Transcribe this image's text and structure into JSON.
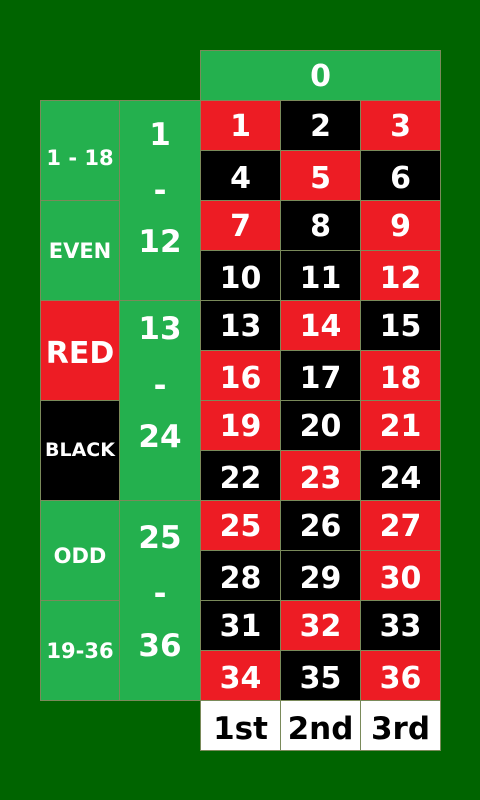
{
  "table": {
    "zero": "0",
    "colors": {
      "felt": "#006400",
      "green": "#24b04e",
      "red": "#ed1c24",
      "black": "#000000",
      "white": "#ffffff"
    },
    "outside_bets": [
      {
        "label": "1 - 18",
        "color": "green"
      },
      {
        "label": "EVEN",
        "color": "green"
      },
      {
        "label": "RED",
        "color": "red"
      },
      {
        "label": "BLACK",
        "color": "black"
      },
      {
        "label": "ODD",
        "color": "green"
      },
      {
        "label": "19-36",
        "color": "green"
      }
    ],
    "dozens": [
      {
        "top": "1",
        "dash": "-",
        "bottom": "12"
      },
      {
        "top": "13",
        "dash": "-",
        "bottom": "24"
      },
      {
        "top": "25",
        "dash": "-",
        "bottom": "36"
      }
    ],
    "numbers": [
      {
        "n": "1",
        "color": "red"
      },
      {
        "n": "2",
        "color": "black"
      },
      {
        "n": "3",
        "color": "red"
      },
      {
        "n": "4",
        "color": "black"
      },
      {
        "n": "5",
        "color": "red"
      },
      {
        "n": "6",
        "color": "black"
      },
      {
        "n": "7",
        "color": "red"
      },
      {
        "n": "8",
        "color": "black"
      },
      {
        "n": "9",
        "color": "red"
      },
      {
        "n": "10",
        "color": "black"
      },
      {
        "n": "11",
        "color": "black"
      },
      {
        "n": "12",
        "color": "red"
      },
      {
        "n": "13",
        "color": "black"
      },
      {
        "n": "14",
        "color": "red"
      },
      {
        "n": "15",
        "color": "black"
      },
      {
        "n": "16",
        "color": "red"
      },
      {
        "n": "17",
        "color": "black"
      },
      {
        "n": "18",
        "color": "red"
      },
      {
        "n": "19",
        "color": "red"
      },
      {
        "n": "20",
        "color": "black"
      },
      {
        "n": "21",
        "color": "red"
      },
      {
        "n": "22",
        "color": "black"
      },
      {
        "n": "23",
        "color": "red"
      },
      {
        "n": "24",
        "color": "black"
      },
      {
        "n": "25",
        "color": "red"
      },
      {
        "n": "26",
        "color": "black"
      },
      {
        "n": "27",
        "color": "red"
      },
      {
        "n": "28",
        "color": "black"
      },
      {
        "n": "29",
        "color": "black"
      },
      {
        "n": "30",
        "color": "red"
      },
      {
        "n": "31",
        "color": "black"
      },
      {
        "n": "32",
        "color": "red"
      },
      {
        "n": "33",
        "color": "black"
      },
      {
        "n": "34",
        "color": "red"
      },
      {
        "n": "35",
        "color": "black"
      },
      {
        "n": "36",
        "color": "red"
      }
    ],
    "columns": [
      "1st",
      "2nd",
      "3rd"
    ]
  }
}
